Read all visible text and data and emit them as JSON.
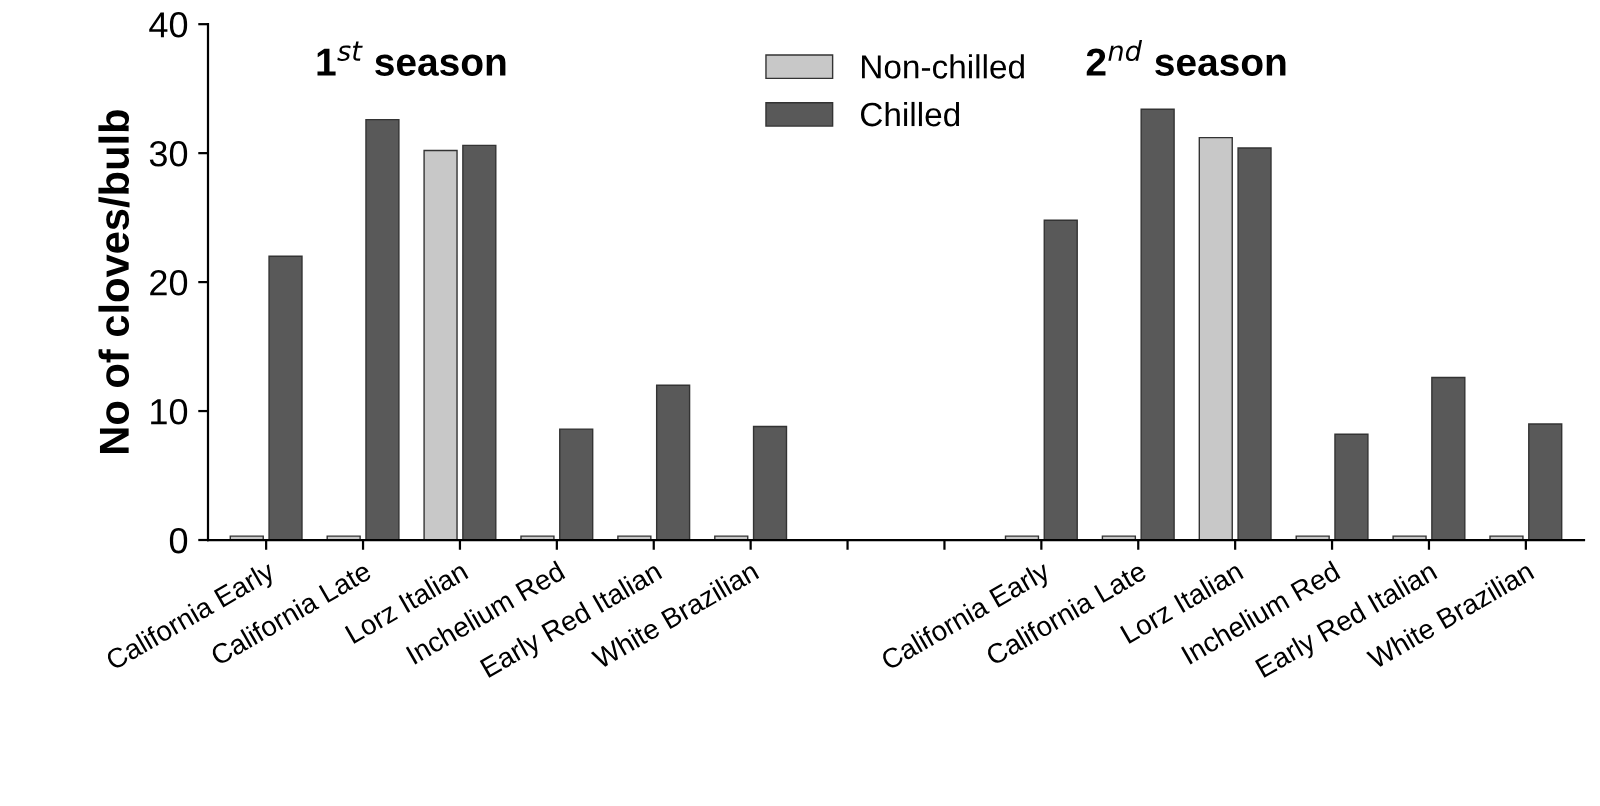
{
  "chart_data": {
    "type": "bar",
    "ylabel": "No of cloves/bulb",
    "categories": [
      "California Early",
      "California Late",
      "Lorz Italian",
      "Inchelium Red",
      "Early Red Italian",
      "White Brazilian",
      null,
      null,
      "California Early",
      "California Late",
      "Lorz Italian",
      "Inchelium Red",
      "Early Red Italian",
      "White Brazilian"
    ],
    "series": [
      {
        "name": "Non-chilled",
        "color": "#c8c8c8",
        "values": [
          0.3,
          0.3,
          30.2,
          0.3,
          0.3,
          0.3,
          null,
          null,
          0.3,
          0.3,
          31.2,
          0.3,
          0.3,
          0.3
        ]
      },
      {
        "name": "Chilled",
        "color": "#595959",
        "values": [
          22,
          32.6,
          30.6,
          8.6,
          12,
          8.8,
          null,
          null,
          24.8,
          33.4,
          30.4,
          8.2,
          12.6,
          9
        ]
      }
    ],
    "ylim": [
      0,
      40
    ],
    "yticks": [
      0,
      10,
      20,
      30,
      40
    ],
    "grid": false,
    "legend": "top",
    "annotations": [
      "1$^{st}$ season",
      "2$^{nd}$ season"
    ]
  }
}
